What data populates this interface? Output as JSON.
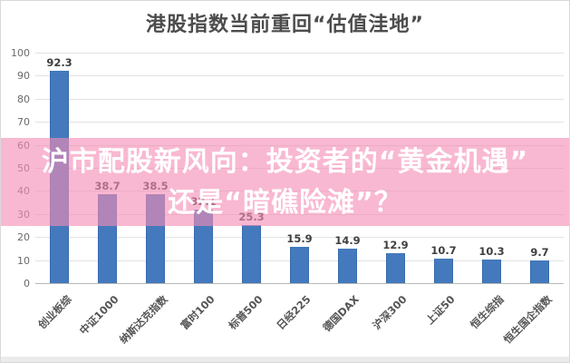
{
  "page": {
    "title": "港股指数当前重回“估值洼地”"
  },
  "overlay": {
    "line1": "沪市配股新风向：投资者的“黄金机遇”",
    "line2": "还是“暗礁险滩”？",
    "background_color": "rgba(246,140,180,0.62)",
    "text_color": "#ffffff"
  },
  "chart_data": {
    "type": "bar",
    "title": "港股指数当前重回“估值洼地”",
    "categories": [
      "创业板综",
      "中证1000",
      "纳斯达克指数",
      "富时100",
      "标普500",
      "日经225",
      "德国DAX",
      "沪深300",
      "上证50",
      "恒生综指",
      "恒生国企指数"
    ],
    "values": [
      92.3,
      38.7,
      38.5,
      32.1,
      25.3,
      15.9,
      14.9,
      12.9,
      10.7,
      10.3,
      9.7
    ],
    "value_labels": [
      "92.3",
      "38.7",
      "38.5",
      "32.1",
      "25.3",
      "15.9",
      "14.9",
      "12.9",
      "10.7",
      "10.3",
      "9.7"
    ],
    "xlabel": "",
    "ylabel": "",
    "ylim": [
      0,
      100
    ],
    "ytick_step": 10,
    "grid": true,
    "legend_position": "none",
    "bar_color": "#4479bd",
    "gridline_color": "#e2e2e2"
  }
}
